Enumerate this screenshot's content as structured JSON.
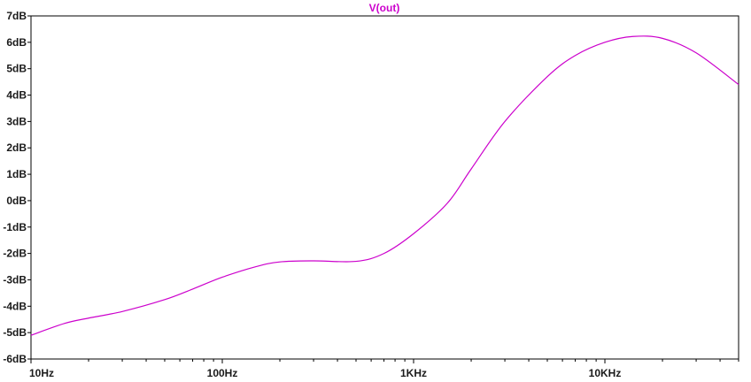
{
  "chart_data": {
    "type": "line",
    "title": "V(out)",
    "xlabel": "",
    "ylabel": "",
    "x_scale": "log",
    "xlim": [
      10,
      50000
    ],
    "ylim": [
      -6,
      7
    ],
    "grid": false,
    "x_ticks": [
      {
        "value": 10,
        "label": "10Hz"
      },
      {
        "value": 100,
        "label": "100Hz"
      },
      {
        "value": 1000,
        "label": "1KHz"
      },
      {
        "value": 10000,
        "label": "10KHz"
      }
    ],
    "y_ticks": [
      {
        "value": 7,
        "label": "7dB"
      },
      {
        "value": 6,
        "label": "6dB"
      },
      {
        "value": 5,
        "label": "5dB"
      },
      {
        "value": 4,
        "label": "4dB"
      },
      {
        "value": 3,
        "label": "3dB"
      },
      {
        "value": 2,
        "label": "2dB"
      },
      {
        "value": 1,
        "label": "1dB"
      },
      {
        "value": 0,
        "label": "0dB"
      },
      {
        "value": -1,
        "label": "-1dB"
      },
      {
        "value": -2,
        "label": "-2dB"
      },
      {
        "value": -3,
        "label": "-3dB"
      },
      {
        "value": -4,
        "label": "-4dB"
      },
      {
        "value": -5,
        "label": "-5dB"
      },
      {
        "value": -6,
        "label": "-6dB"
      }
    ],
    "series": [
      {
        "name": "V(out)",
        "color": "#cc00cc",
        "x": [
          10,
          15,
          20,
          30,
          50,
          70,
          100,
          150,
          200,
          300,
          500,
          700,
          1000,
          1500,
          2000,
          3000,
          5000,
          7000,
          10000,
          14000,
          20000,
          30000,
          50000
        ],
        "y": [
          -5.1,
          -4.65,
          -4.45,
          -4.2,
          -3.75,
          -3.35,
          -2.9,
          -2.5,
          -2.32,
          -2.28,
          -2.3,
          -2.0,
          -1.25,
          -0.1,
          1.2,
          3.0,
          4.7,
          5.5,
          6.0,
          6.22,
          6.15,
          5.6,
          4.4
        ]
      }
    ]
  }
}
